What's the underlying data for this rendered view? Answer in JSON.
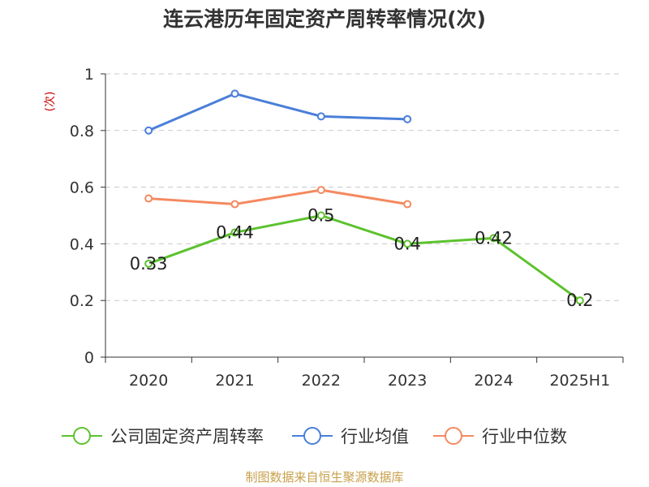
{
  "title": "连云港历年固定资产周转率情况(次)",
  "source": "制图数据来自恒生聚源数据库",
  "chart_data": {
    "type": "line",
    "title": "连云港历年固定资产周转率情况(次)",
    "ylabel": "(次)",
    "xlabel": "",
    "ylim": [
      0,
      1
    ],
    "yticks": [
      "0",
      "0.2",
      "0.4",
      "0.6",
      "0.8",
      "1"
    ],
    "categories": [
      "2020",
      "2021",
      "2022",
      "2023",
      "2024",
      "2025H1"
    ],
    "grid": true,
    "legend_position": "bottom",
    "series": [
      {
        "name": "公司固定资产周转率",
        "color": "#5cc22e",
        "values": [
          0.33,
          0.44,
          0.5,
          0.4,
          0.42,
          0.2
        ],
        "labels": [
          "0.33",
          "0.44",
          "0.5",
          "0.4",
          "0.42",
          "0.2"
        ]
      },
      {
        "name": "行业均值",
        "color": "#4a7fd9",
        "values": [
          0.8,
          0.93,
          0.85,
          0.84,
          null,
          null
        ]
      },
      {
        "name": "行业中位数",
        "color": "#f4895f",
        "values": [
          0.56,
          0.54,
          0.59,
          0.54,
          null,
          null
        ]
      }
    ]
  }
}
